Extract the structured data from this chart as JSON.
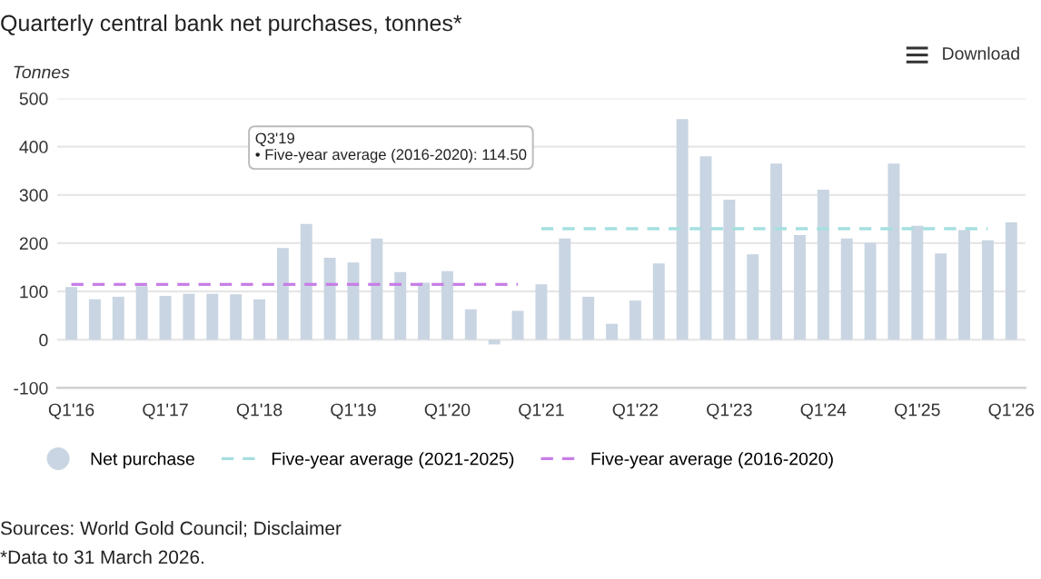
{
  "chart_data": {
    "type": "bar",
    "title": "Quarterly central bank net purchases, tonnes*",
    "ylabel": "Tonnes",
    "categories": [
      "Q1'16",
      null,
      null,
      null,
      "Q1'17",
      null,
      null,
      null,
      "Q1'18",
      null,
      null,
      null,
      "Q1'19",
      null,
      null,
      null,
      "Q1'20",
      null,
      null,
      null,
      "Q1'21",
      null,
      null,
      null,
      "Q1'22",
      null,
      null,
      null,
      "Q1'23",
      null,
      null,
      null,
      "Q1'24",
      null,
      null,
      null,
      "Q1'25",
      null,
      null,
      null,
      "Q1'26"
    ],
    "series": [
      {
        "name": "Net purchase",
        "color": "#c9d5e2",
        "values": [
          109,
          84,
          89,
          111,
          91,
          95,
          95,
          94,
          84,
          190,
          240,
          170,
          160,
          210,
          140,
          118,
          142,
          63,
          -10,
          60,
          115,
          210,
          89,
          33,
          81,
          158,
          457,
          380,
          290,
          177,
          365,
          217,
          311,
          210,
          201,
          365,
          236,
          179,
          227,
          206,
          243
        ]
      },
      {
        "name": "Five-year average (2021-2025)",
        "type": "line",
        "line_style": "dashed",
        "color": "#a6dfe0",
        "values": [
          null,
          null,
          null,
          null,
          null,
          null,
          null,
          null,
          null,
          null,
          null,
          null,
          null,
          null,
          null,
          null,
          null,
          null,
          null,
          null,
          230,
          230,
          230,
          230,
          230,
          230,
          230,
          230,
          230,
          230,
          230,
          230,
          230,
          230,
          230,
          230,
          230,
          230,
          230,
          230,
          null
        ]
      },
      {
        "name": "Five-year average (2016-2020)",
        "type": "line",
        "line_style": "dashed",
        "color": "#c77ee6",
        "values": [
          114.5,
          114.5,
          114.5,
          114.5,
          114.5,
          114.5,
          114.5,
          114.5,
          114.5,
          114.5,
          114.5,
          114.5,
          114.5,
          114.5,
          114.5,
          114.5,
          114.5,
          114.5,
          114.5,
          114.5,
          null,
          null,
          null,
          null,
          null,
          null,
          null,
          null,
          null,
          null,
          null,
          null,
          null,
          null,
          null,
          null,
          null,
          null,
          null,
          null,
          null
        ]
      }
    ],
    "ylim": [
      -100,
      500
    ],
    "yticks": [
      -100,
      0,
      100,
      200,
      300,
      400,
      500
    ],
    "grid": "y",
    "legend": "bottom",
    "annotations": [
      "Q3'19\n• Five-year average (2016-2020): 114.50",
      "Download",
      "Sources: World Gold Council; Disclaimer",
      "*Data to 31 March 2026."
    ]
  }
}
